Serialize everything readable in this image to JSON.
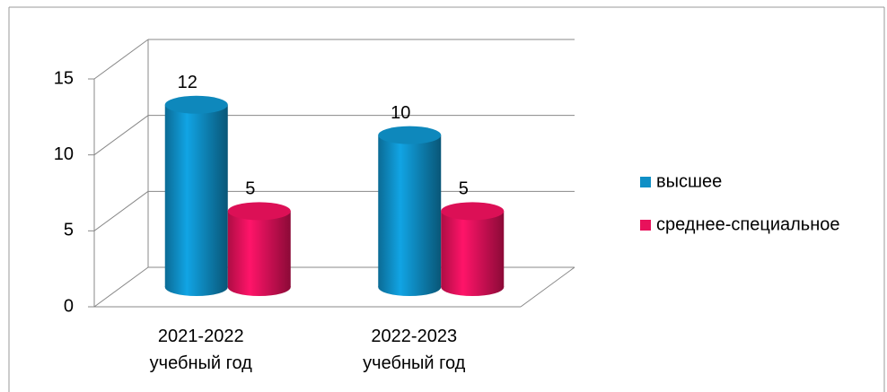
{
  "chart_data": {
    "type": "bar3d",
    "categories": [
      "2021-2022 учебный год",
      "2022-2023 учебный год"
    ],
    "series": [
      {
        "name": "высшее",
        "color": "#0f8fc6",
        "values": [
          12,
          10
        ]
      },
      {
        "name": "среднее-специальное",
        "color": "#e8115b",
        "values": [
          5,
          5
        ]
      }
    ],
    "ylim": [
      0,
      15
    ],
    "yticks": [
      0,
      5,
      10,
      15
    ],
    "grid": true,
    "legend": "right"
  }
}
